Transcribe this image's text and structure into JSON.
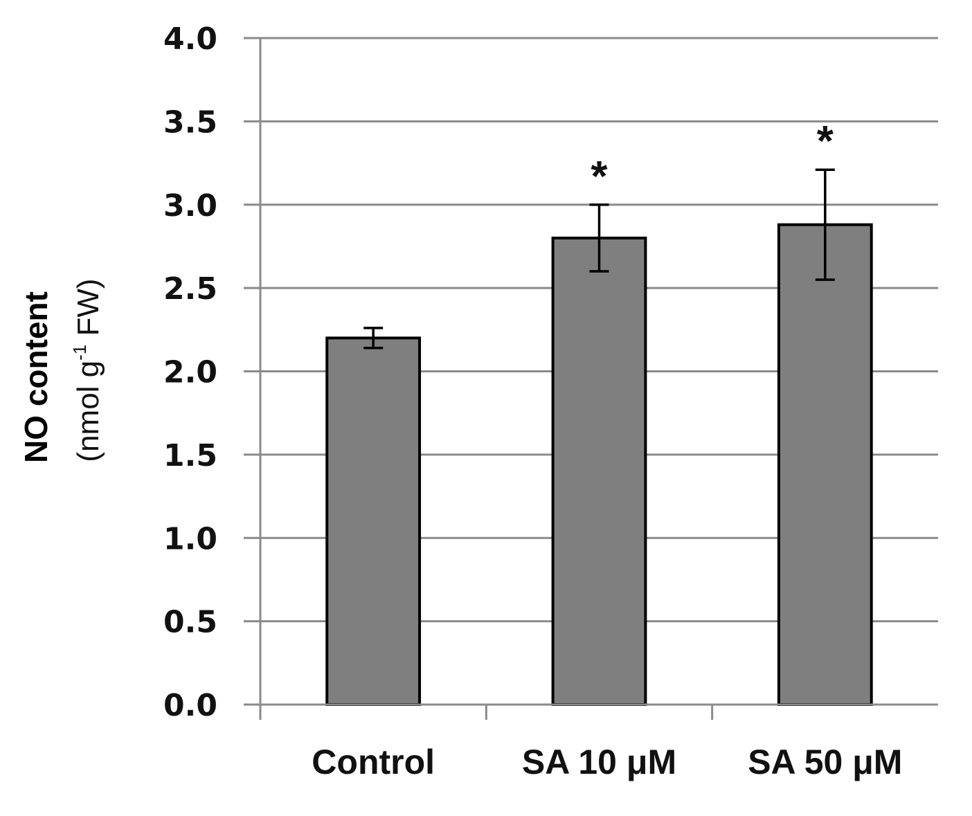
{
  "chart_data": {
    "type": "bar",
    "title": "",
    "xlabel": "",
    "ylabel": "NO content",
    "ylabel_units": "(nmol g",
    "ylabel_exp": "-1",
    "ylabel_units_end": " FW)",
    "ylim": [
      0,
      4
    ],
    "yticks": [
      "0.0",
      "0.5",
      "1.0",
      "1.5",
      "2.0",
      "2.5",
      "3.0",
      "3.5",
      "4.0"
    ],
    "ytick_values": [
      0,
      0.5,
      1.0,
      1.5,
      2.0,
      2.5,
      3.0,
      3.5,
      4.0
    ],
    "categories": [
      "Control",
      "SA 10 μM",
      "SA 50 μM"
    ],
    "values": [
      2.2,
      2.8,
      2.88
    ],
    "errors": [
      0.06,
      0.2,
      0.33
    ],
    "significance": [
      "",
      "*",
      "*"
    ],
    "bar_color": "#7f7f7f",
    "grid": true
  }
}
